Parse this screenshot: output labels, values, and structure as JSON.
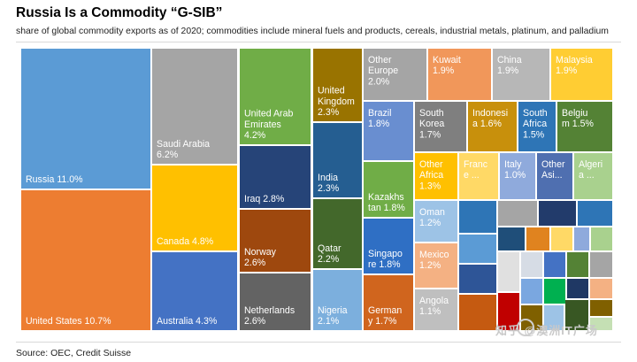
{
  "header": {
    "title": "Russia Is a Commodity “G-SIB”",
    "subtitle": "share of global commodity exports as of 2020; commodities include mineral fuels and products, cereals, industrial metals, platinum, and palladium"
  },
  "footer": {
    "source": "Source: OEC, Credit Suisse"
  },
  "watermark": {
    "text": "知乎 @澳洲IT广场"
  },
  "chart_data": {
    "type": "treemap",
    "title": "Russia Is a Commodity “G-SIB”",
    "unit": "%",
    "items": [
      {
        "label": "Russia",
        "value": 11.0,
        "lines": [
          "Russia 11.0%"
        ],
        "color": "#5b9bd5"
      },
      {
        "label": "United States",
        "value": 10.7,
        "lines": [
          "United States 10.7%"
        ],
        "color": "#ed7d31"
      },
      {
        "label": "Saudi Arabia",
        "value": 6.2,
        "lines": [
          "Saudi Arabia",
          "6.2%"
        ],
        "color": "#a5a5a5"
      },
      {
        "label": "Canada",
        "value": 4.8,
        "lines": [
          "Canada 4.8%"
        ],
        "color": "#ffc000"
      },
      {
        "label": "Australia",
        "value": 4.3,
        "lines": [
          "Australia 4.3%"
        ],
        "color": "#4472c4"
      },
      {
        "label": "United Arab Emirates",
        "value": 4.2,
        "lines": [
          "United Arab",
          "Emirates",
          "4.2%"
        ],
        "color": "#70ad47"
      },
      {
        "label": "Iraq",
        "value": 2.8,
        "lines": [
          "Iraq 2.8%"
        ],
        "color": "#264478"
      },
      {
        "label": "Norway",
        "value": 2.6,
        "lines": [
          "Norway",
          "2.6%"
        ],
        "color": "#9e480e"
      },
      {
        "label": "Netherlands",
        "value": 2.6,
        "lines": [
          "Netherlands",
          "2.6%"
        ],
        "color": "#636363"
      },
      {
        "label": "United Kingdom",
        "value": 2.3,
        "lines": [
          "United",
          "Kingdom",
          "2.3%"
        ],
        "color": "#997300"
      },
      {
        "label": "India",
        "value": 2.3,
        "lines": [
          "India",
          "2.3%"
        ],
        "color": "#255e91"
      },
      {
        "label": "Qatar",
        "value": 2.2,
        "lines": [
          "Qatar",
          "2.2%"
        ],
        "color": "#43682b"
      },
      {
        "label": "Nigeria",
        "value": 2.1,
        "lines": [
          "Nigeria",
          "2.1%"
        ],
        "color": "#7cafdd"
      },
      {
        "label": "Other Europe",
        "value": 2.0,
        "lines": [
          "Other",
          "Europe",
          "2.0%"
        ],
        "color": "#a5a5a5"
      },
      {
        "label": "Kuwait",
        "value": 1.9,
        "lines": [
          "Kuwait",
          "1.9%"
        ],
        "color": "#f1975a"
      },
      {
        "label": "China",
        "value": 1.9,
        "lines": [
          "China",
          "1.9%"
        ],
        "color": "#b7b7b7"
      },
      {
        "label": "Malaysia",
        "value": 1.9,
        "lines": [
          "Malaysia",
          "1.9%"
        ],
        "color": "#ffcd33"
      },
      {
        "label": "Brazil",
        "value": 1.8,
        "lines": [
          "Brazil",
          "1.8%"
        ],
        "color": "#698ed0"
      },
      {
        "label": "South Korea",
        "value": 1.7,
        "lines": [
          "South",
          "Korea",
          "1.7%"
        ],
        "color": "#7f7f7f"
      },
      {
        "label": "Indonesia",
        "value": 1.6,
        "lines": [
          "Indonesi",
          "a 1.6%"
        ],
        "color": "#c8900c"
      },
      {
        "label": "South Africa",
        "value": 1.5,
        "lines": [
          "South",
          "Africa",
          "1.5%"
        ],
        "color": "#2e75b6"
      },
      {
        "label": "Belgium",
        "value": 1.5,
        "lines": [
          "Belgiu",
          "m 1.5%"
        ],
        "color": "#548235"
      },
      {
        "label": "Kazakhstan",
        "value": 1.8,
        "lines": [
          "Kazakhs",
          "tan 1.8%"
        ],
        "color": "#70ad47"
      },
      {
        "label": "Other Africa",
        "value": 1.3,
        "lines": [
          "Other",
          "Africa",
          "1.3%"
        ],
        "color": "#ffc000"
      },
      {
        "label": "France",
        "value": null,
        "lines": [
          "Franc",
          "e ..."
        ],
        "color": "#ffd966"
      },
      {
        "label": "Italy",
        "value": 1.0,
        "lines": [
          "Italy",
          "1.0%"
        ],
        "color": "#8faadc"
      },
      {
        "label": "Other Asia",
        "value": null,
        "lines": [
          "Other",
          "Asi..."
        ],
        "color": "#4f6fb0"
      },
      {
        "label": "Algeria",
        "value": null,
        "lines": [
          "Algeri",
          "a ..."
        ],
        "color": "#a9d18e"
      },
      {
        "label": "Singapore",
        "value": 1.8,
        "lines": [
          "Singapo",
          "re 1.8%"
        ],
        "color": "#2f6fc4"
      },
      {
        "label": "Oman",
        "value": 1.2,
        "lines": [
          "Oman",
          "1.2%"
        ],
        "color": "#9dc3e6"
      },
      {
        "label": "Mexico",
        "value": 1.2,
        "lines": [
          "Mexico",
          "1.2%"
        ],
        "color": "#f4b183"
      },
      {
        "label": "Germany",
        "value": 1.7,
        "lines": [
          "German",
          "y 1.7%"
        ],
        "color": "#d0651e"
      },
      {
        "label": "Angola",
        "value": 1.1,
        "lines": [
          "Angola",
          "1.1%"
        ],
        "color": "#bfbfbf"
      }
    ],
    "unlabeled_colors": [
      "#2e75b6",
      "#a5a5a5",
      "#223b6b",
      "#2e75b6",
      "#1f4e79",
      "#e0831f",
      "#ffd966",
      "#8faadc",
      "#a9d18e",
      "#5b9bd5",
      "#2e5597",
      "#c55a11",
      "#e0e0e0",
      "#d6dce5",
      "#4472c4",
      "#548235",
      "#a5a5a5",
      "#c00000",
      "#7aa7e0",
      "#00b050",
      "#1f3864",
      "#f4b183",
      "#7f6000",
      "#9dc3e6",
      "#385723",
      "#806000",
      "#c5e0b4",
      "#ffc000",
      "#262626",
      "#bdd7ee"
    ]
  }
}
